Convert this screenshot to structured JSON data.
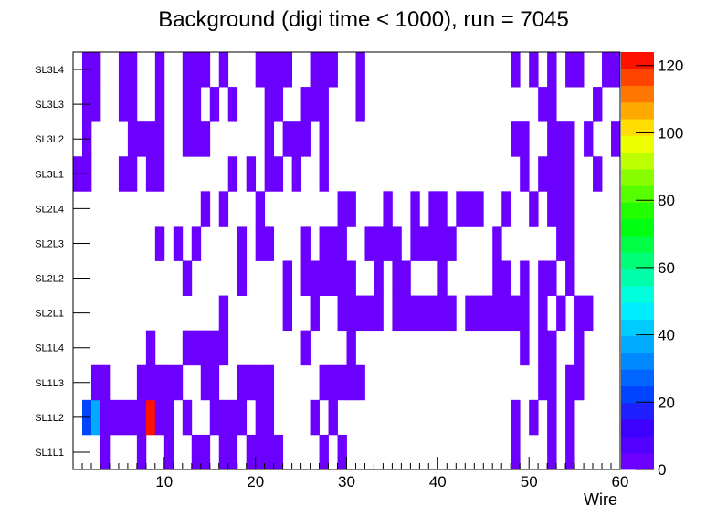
{
  "chart_data": {
    "type": "heatmap",
    "title": "Background (digi time < 1000), run = 7045",
    "xlabel": "Wire",
    "ylabel": "",
    "x_range": [
      0,
      60
    ],
    "x_ticks": [
      10,
      20,
      30,
      40,
      50,
      60
    ],
    "z_range": [
      0,
      124
    ],
    "z_ticks": [
      0,
      20,
      40,
      60,
      80,
      100,
      120
    ],
    "rows": [
      "SL1L1",
      "SL1L2",
      "SL1L3",
      "SL1L4",
      "SL2L1",
      "SL2L2",
      "SL2L3",
      "SL2L4",
      "SL3L1",
      "SL3L2",
      "SL3L3",
      "SL3L4"
    ],
    "palette": [
      "#6c00ff",
      "#5200ff",
      "#3d00ff",
      "#1f1fff",
      "#0044ff",
      "#0066ff",
      "#0088ff",
      "#00aaff",
      "#00ccff",
      "#00eeff",
      "#00ffdd",
      "#00ffaa",
      "#00ff77",
      "#00ff44",
      "#00ff11",
      "#22ff00",
      "#55ff00",
      "#88ff00",
      "#bbff00",
      "#eeff00",
      "#ffdd00",
      "#ffaa00",
      "#ff7700",
      "#ff4400",
      "#ff1100"
    ],
    "cells": {
      "SL1L1": [
        [
          4,
          1
        ],
        [
          8,
          1
        ],
        [
          11,
          1
        ],
        [
          14,
          1
        ],
        [
          15,
          1
        ],
        [
          17,
          1
        ],
        [
          18,
          1
        ],
        [
          20,
          1
        ],
        [
          21,
          1
        ],
        [
          22,
          1
        ],
        [
          23,
          1
        ],
        [
          28,
          1
        ],
        [
          30,
          1
        ],
        [
          49,
          1
        ],
        [
          53,
          1
        ],
        [
          55,
          1
        ]
      ],
      "SL1L2": [
        [
          2,
          22
        ],
        [
          3,
          36
        ],
        [
          4,
          1
        ],
        [
          5,
          1
        ],
        [
          6,
          1
        ],
        [
          7,
          1
        ],
        [
          8,
          1
        ],
        [
          9,
          124
        ],
        [
          10,
          1
        ],
        [
          11,
          1
        ],
        [
          13,
          1
        ],
        [
          16,
          1
        ],
        [
          17,
          1
        ],
        [
          18,
          1
        ],
        [
          19,
          1
        ],
        [
          21,
          1
        ],
        [
          22,
          1
        ],
        [
          27,
          1
        ],
        [
          29,
          1
        ],
        [
          49,
          1
        ],
        [
          51,
          1
        ],
        [
          53,
          1
        ],
        [
          55,
          1
        ]
      ],
      "SL1L3": [
        [
          3,
          1
        ],
        [
          4,
          1
        ],
        [
          8,
          1
        ],
        [
          9,
          1
        ],
        [
          10,
          1
        ],
        [
          11,
          1
        ],
        [
          12,
          1
        ],
        [
          15,
          1
        ],
        [
          16,
          1
        ],
        [
          19,
          1
        ],
        [
          20,
          1
        ],
        [
          21,
          1
        ],
        [
          22,
          1
        ],
        [
          28,
          1
        ],
        [
          29,
          1
        ],
        [
          30,
          1
        ],
        [
          31,
          1
        ],
        [
          32,
          1
        ],
        [
          52,
          1
        ],
        [
          53,
          1
        ],
        [
          55,
          1
        ],
        [
          56,
          1
        ]
      ],
      "SL1L4": [
        [
          9,
          1
        ],
        [
          13,
          1
        ],
        [
          14,
          1
        ],
        [
          15,
          1
        ],
        [
          16,
          1
        ],
        [
          17,
          1
        ],
        [
          26,
          1
        ],
        [
          31,
          1
        ],
        [
          50,
          1
        ],
        [
          52,
          1
        ],
        [
          53,
          1
        ],
        [
          56,
          1
        ]
      ],
      "SL2L1": [
        [
          17,
          1
        ],
        [
          24,
          1
        ],
        [
          27,
          1
        ],
        [
          30,
          1
        ],
        [
          31,
          1
        ],
        [
          32,
          1
        ],
        [
          33,
          1
        ],
        [
          34,
          1
        ],
        [
          36,
          1
        ],
        [
          37,
          1
        ],
        [
          38,
          1
        ],
        [
          39,
          1
        ],
        [
          40,
          1
        ],
        [
          41,
          1
        ],
        [
          42,
          1
        ],
        [
          44,
          1
        ],
        [
          45,
          1
        ],
        [
          46,
          1
        ],
        [
          47,
          1
        ],
        [
          48,
          1
        ],
        [
          49,
          1
        ],
        [
          50,
          1
        ],
        [
          52,
          1
        ],
        [
          54,
          1
        ],
        [
          56,
          1
        ],
        [
          57,
          1
        ]
      ],
      "SL2L2": [
        [
          13,
          1
        ],
        [
          19,
          1
        ],
        [
          24,
          1
        ],
        [
          26,
          1
        ],
        [
          27,
          1
        ],
        [
          28,
          1
        ],
        [
          29,
          1
        ],
        [
          30,
          1
        ],
        [
          31,
          1
        ],
        [
          34,
          1
        ],
        [
          36,
          1
        ],
        [
          37,
          1
        ],
        [
          41,
          1
        ],
        [
          47,
          1
        ],
        [
          48,
          1
        ],
        [
          50,
          1
        ],
        [
          52,
          1
        ],
        [
          53,
          1
        ],
        [
          55,
          1
        ]
      ],
      "SL2L3": [
        [
          10,
          1
        ],
        [
          12,
          1
        ],
        [
          14,
          1
        ],
        [
          19,
          1
        ],
        [
          21,
          1
        ],
        [
          22,
          1
        ],
        [
          26,
          1
        ],
        [
          28,
          1
        ],
        [
          29,
          1
        ],
        [
          30,
          1
        ],
        [
          33,
          1
        ],
        [
          34,
          1
        ],
        [
          35,
          1
        ],
        [
          36,
          1
        ],
        [
          38,
          1
        ],
        [
          39,
          1
        ],
        [
          40,
          1
        ],
        [
          41,
          1
        ],
        [
          42,
          1
        ],
        [
          47,
          1
        ],
        [
          54,
          1
        ],
        [
          55,
          1
        ]
      ],
      "SL2L4": [
        [
          15,
          1
        ],
        [
          17,
          1
        ],
        [
          21,
          1
        ],
        [
          30,
          1
        ],
        [
          31,
          1
        ],
        [
          35,
          1
        ],
        [
          38,
          1
        ],
        [
          40,
          1
        ],
        [
          41,
          1
        ],
        [
          43,
          1
        ],
        [
          44,
          1
        ],
        [
          45,
          1
        ],
        [
          48,
          1
        ],
        [
          51,
          1
        ],
        [
          53,
          1
        ],
        [
          54,
          1
        ],
        [
          55,
          1
        ]
      ],
      "SL3L1": [
        [
          1,
          1
        ],
        [
          2,
          1
        ],
        [
          6,
          1
        ],
        [
          7,
          1
        ],
        [
          9,
          1
        ],
        [
          10,
          1
        ],
        [
          18,
          1
        ],
        [
          20,
          1
        ],
        [
          22,
          1
        ],
        [
          23,
          1
        ],
        [
          25,
          1
        ],
        [
          28,
          1
        ],
        [
          50,
          1
        ],
        [
          52,
          1
        ],
        [
          53,
          1
        ],
        [
          54,
          1
        ],
        [
          55,
          1
        ],
        [
          58,
          1
        ]
      ],
      "SL3L2": [
        [
          2,
          1
        ],
        [
          7,
          1
        ],
        [
          8,
          1
        ],
        [
          9,
          1
        ],
        [
          10,
          1
        ],
        [
          13,
          1
        ],
        [
          14,
          1
        ],
        [
          15,
          1
        ],
        [
          22,
          1
        ],
        [
          24,
          1
        ],
        [
          25,
          1
        ],
        [
          26,
          1
        ],
        [
          28,
          1
        ],
        [
          49,
          1
        ],
        [
          50,
          1
        ],
        [
          53,
          1
        ],
        [
          54,
          1
        ],
        [
          55,
          1
        ],
        [
          57,
          1
        ],
        [
          60,
          1
        ]
      ],
      "SL3L3": [
        [
          2,
          1
        ],
        [
          3,
          1
        ],
        [
          6,
          1
        ],
        [
          7,
          1
        ],
        [
          10,
          1
        ],
        [
          13,
          1
        ],
        [
          14,
          1
        ],
        [
          16,
          1
        ],
        [
          18,
          1
        ],
        [
          22,
          1
        ],
        [
          23,
          1
        ],
        [
          26,
          1
        ],
        [
          27,
          1
        ],
        [
          28,
          1
        ],
        [
          32,
          1
        ],
        [
          52,
          1
        ],
        [
          53,
          1
        ],
        [
          58,
          1
        ]
      ],
      "SL3L4": [
        [
          2,
          1
        ],
        [
          3,
          1
        ],
        [
          6,
          1
        ],
        [
          7,
          1
        ],
        [
          10,
          1
        ],
        [
          13,
          1
        ],
        [
          14,
          1
        ],
        [
          15,
          1
        ],
        [
          17,
          1
        ],
        [
          21,
          1
        ],
        [
          22,
          1
        ],
        [
          23,
          1
        ],
        [
          24,
          1
        ],
        [
          27,
          1
        ],
        [
          28,
          1
        ],
        [
          29,
          1
        ],
        [
          32,
          1
        ],
        [
          49,
          1
        ],
        [
          51,
          1
        ],
        [
          53,
          1
        ],
        [
          55,
          1
        ],
        [
          56,
          1
        ],
        [
          59,
          1
        ],
        [
          60,
          1
        ]
      ]
    }
  }
}
